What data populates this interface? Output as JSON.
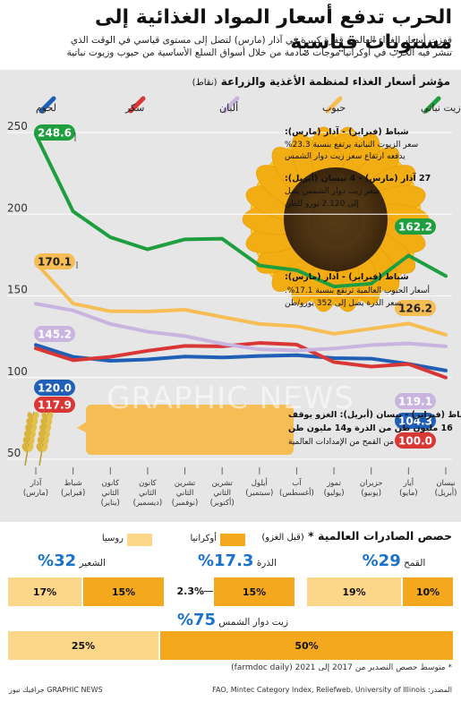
{
  "title": "الحرب تدفع أسعار المواد الغذائية إلى مستويات قياسية",
  "subtitle_line1": "قفزت أسعار الغذاء العالمية قفزة كبيرة في آذار (مارس) لتصل إلى مستوى قياسي في الوقت الذي",
  "subtitle_line2": "تنشر فيه الحرب في أوكرانيا موجات صادمة من خلال أسواق السلع الأساسية من حبوب وزيوت نباتية",
  "chart_title": "مؤشر أسعار الغذاء لمنظمة الأغذية والزراعة",
  "chart_unit": "(نقاط)",
  "colors": {
    "veg_oil": "#1e9e3e",
    "cereals": "#f6bd55",
    "dairy": "#c8b4df",
    "sugar": "#d93636",
    "meat": "#1f5fb5"
  },
  "watermark": "GRAPHIC NEWS",
  "chart_data": {
    "type": "line",
    "x": [
      "آذار (مارس)",
      "شباط (فبراير)",
      "كانون الثاني (يناير)",
      "كانون الأول (ديسمبر)",
      "تشرين الثاني (نوفمبر)",
      "تشرين الأول (أكتوبر)",
      "أيلول (سبتمبر)",
      "آب (أغسطس)",
      "تموز (يوليو)",
      "حزيران (يونيو)",
      "أيار (مايو)",
      "نيسان (أبريل)"
    ],
    "x_lines": [
      [
        "آذار",
        "(مارس)"
      ],
      [
        "شباط",
        "(فبراير)"
      ],
      [
        "كانون",
        "الثاني",
        "(يناير)"
      ],
      [
        "كانون",
        "الثاني",
        "(ديسمبر)"
      ],
      [
        "تشرين",
        "الثاني",
        "(نوفمبر)"
      ],
      [
        "تشرين",
        "الثاني",
        "(أكتوبر)"
      ],
      [
        "أيلول",
        "(سبتمبر)"
      ],
      [
        "آب",
        "(أغسطس)"
      ],
      [
        "تموز",
        "(يوليو)"
      ],
      [
        "حزيران",
        "(يونيو)"
      ],
      [
        "أيار",
        "(مايو)"
      ],
      [
        "نيسان",
        "(أبريل)"
      ]
    ],
    "ylim": [
      50,
      250
    ],
    "yticks": [
      250,
      200,
      150,
      100,
      50
    ],
    "series": [
      {
        "name": "زيت نباتي",
        "key": "veg_oil",
        "values": [
          248.6,
          201.7,
          185.9,
          178.5,
          184.6,
          185.0,
          168.6,
          165.7,
          155.7,
          157.5,
          174.7,
          162.2
        ]
      },
      {
        "name": "حبوب",
        "key": "cereals",
        "values": [
          170.1,
          145.3,
          140.6,
          140.5,
          141.5,
          137.1,
          132.8,
          131.4,
          126.8,
          129.9,
          133.1,
          126.2
        ]
      },
      {
        "name": "ألبان",
        "key": "dairy",
        "values": [
          145.2,
          141.1,
          132.8,
          128.1,
          125.4,
          120.7,
          117.3,
          116.6,
          117.8,
          119.9,
          120.9,
          119.1
        ]
      },
      {
        "name": "سكر",
        "key": "sugar",
        "values": [
          117.9,
          110.6,
          112.7,
          116.4,
          119.4,
          119.1,
          121.2,
          120.2,
          109.5,
          106.7,
          108.3,
          100.0
        ]
      },
      {
        "name": "لحوم",
        "key": "meat",
        "values": [
          120.0,
          112.7,
          110.3,
          111.1,
          112.9,
          112.3,
          113.2,
          113.7,
          111.9,
          111.6,
          108.4,
          104.3
        ]
      }
    ],
    "end_labels": {
      "start": [
        248.6,
        170.1,
        145.2,
        117.9,
        120.0
      ],
      "end": [
        162.2,
        126.2,
        119.1,
        100.0,
        104.3
      ]
    }
  },
  "annotations": {
    "oil_head": "شباط (فبراير) - آذار (مارس):",
    "oil_l1": "سعر الزيوت النباتية يرتفع بنسبة 23.3%",
    "oil_l2": "يدفعه ارتفاع سعر زيت دوار الشمس",
    "sun_head": "27 آذار (مارس) - 4 نيسان (أبريل):",
    "sun_l1": "سعر زيت دوار الشمس يصل",
    "sun_l2": "إلى 2.120 يورو للطن",
    "cer_head": "شباط (فبراير) - آذار (مارس):",
    "cer_l1": "أسعار الحبوب العالمية ترتفع بنسبة 17.1%.",
    "cer_l2": "سعر الذرة يصل إلى 352 يورو/طن",
    "war_head": "شباط (فبراير) - نيسان (أبريل): الغزو يوقف",
    "war_l1": "16 مليون طن من الذرة و14 مليون طن",
    "war_l2": "من القمح من الإمدادات العالمية"
  },
  "shares": {
    "title": "حصص الصادرات العالمية *",
    "note": "(قبل الغزو)",
    "legend_ukraine": "أوكرانيا",
    "legend_russia": "روسيا",
    "wheat": {
      "label": "القمح",
      "pct": "29%",
      "ukraine": "10%",
      "russia": "19%"
    },
    "corn": {
      "label": "الذرة",
      "pct": "17.3%",
      "ukraine": "15%",
      "russia": "2.3%"
    },
    "barley": {
      "label": "الشعير",
      "pct": "32%",
      "ukraine": "15%",
      "russia": "17%"
    },
    "sunflower": {
      "label": "زيت دوار الشمس",
      "pct": "75%",
      "ukraine": "50%",
      "russia": "25%"
    }
  },
  "footnote": "* متوسط حصص التصدير من 2017 إلى 2021 (farmdoc daily)",
  "source": "المصدر: FAO, Mintec Category Index, Reliefweb, University of Illinois",
  "credit": "GRAPHIC NEWS جرافيك نيوز"
}
